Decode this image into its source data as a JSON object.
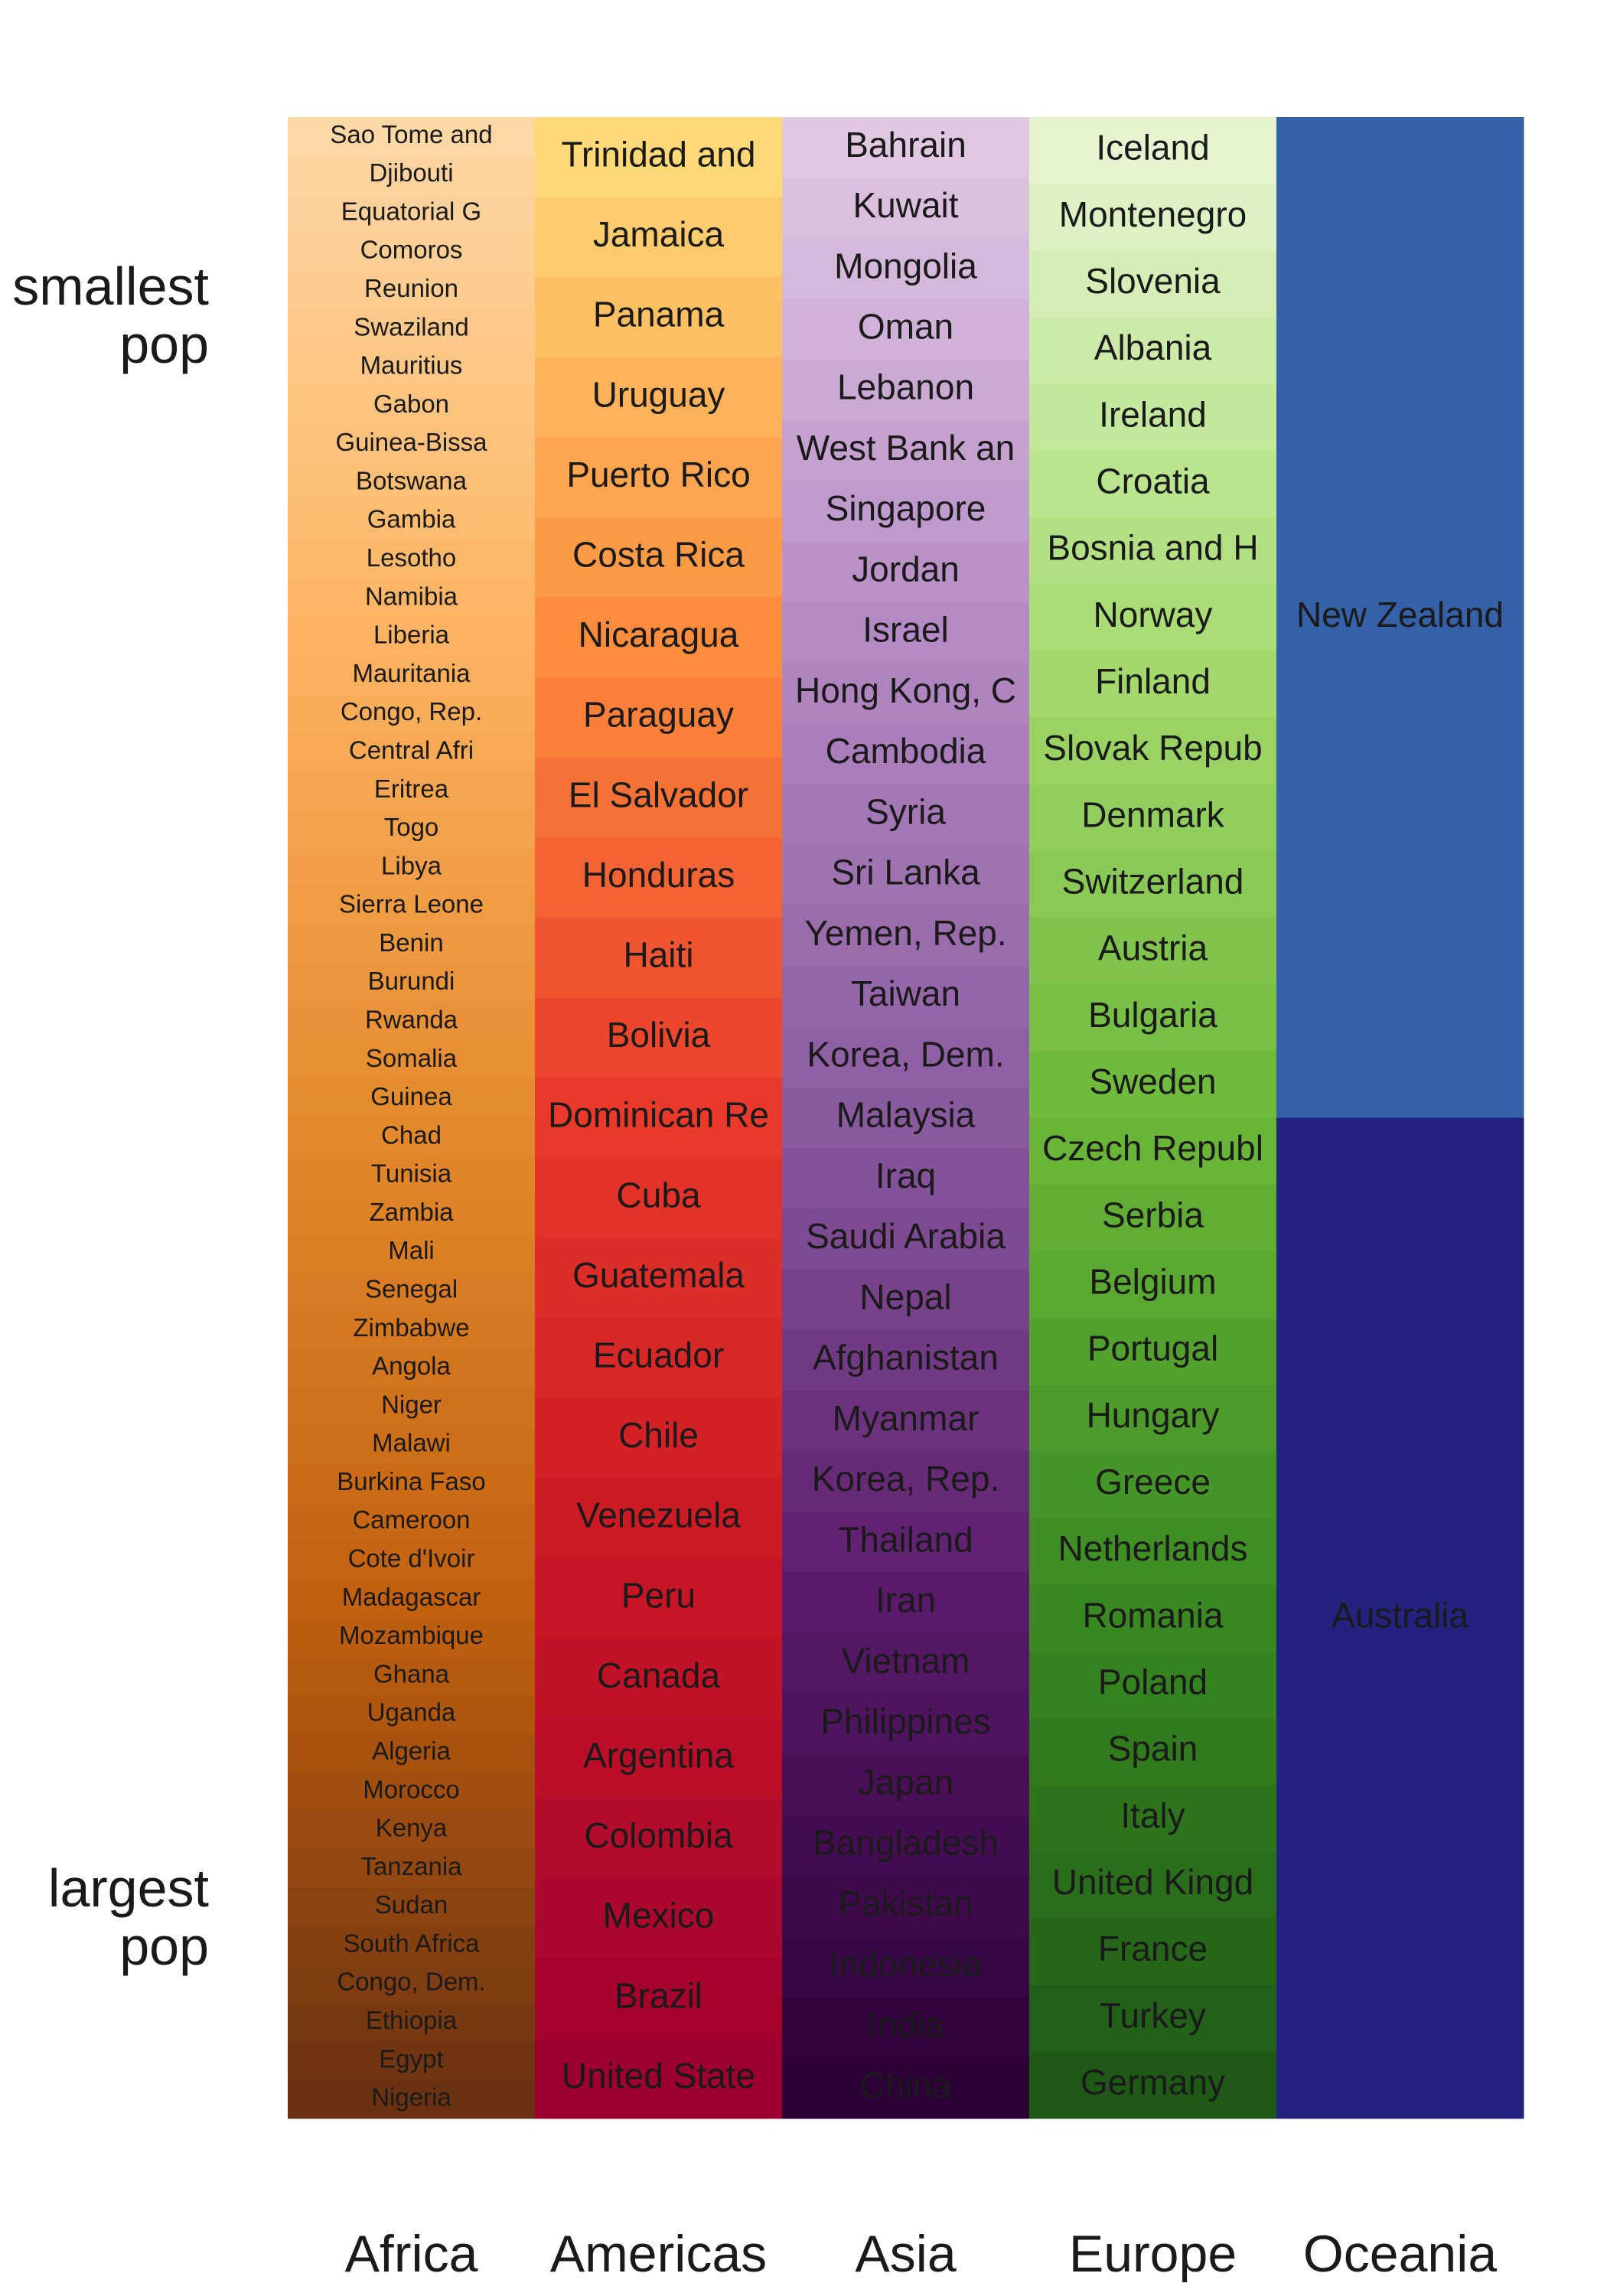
{
  "chart_data": {
    "type": "tile",
    "annotations": [
      [
        "smallest",
        "pop"
      ],
      [
        "largest",
        "pop"
      ]
    ],
    "columns": [
      {
        "name": "Africa",
        "colors": [
          "#fdd7a4",
          "#fdb462",
          "#e48a2c",
          "#c2600f",
          "#6a3211"
        ],
        "labels": [
          "Sao Tome and",
          "Djibouti",
          "Equatorial G",
          "Comoros",
          "Reunion",
          "Swaziland",
          "Mauritius",
          "Gabon",
          "Guinea-Bissa",
          "Botswana",
          "Gambia",
          "Lesotho",
          "Namibia",
          "Liberia",
          "Mauritania",
          "Congo, Rep.",
          "Central Afri",
          "Eritrea",
          "Togo",
          "Libya",
          "Sierra Leone",
          "Benin",
          "Burundi",
          "Rwanda",
          "Somalia",
          "Guinea",
          "Chad",
          "Tunisia",
          "Zambia",
          "Mali",
          "Senegal",
          "Zimbabwe",
          "Angola",
          "Niger",
          "Malawi",
          "Burkina Faso",
          "Cameroon",
          "Cote d'Ivoir",
          "Madagascar",
          "Mozambique",
          "Ghana",
          "Uganda",
          "Algeria",
          "Morocco",
          "Kenya",
          "Tanzania",
          "Sudan",
          "South Africa",
          "Congo, Dem.",
          "Ethiopia",
          "Egypt",
          "Nigeria"
        ]
      },
      {
        "name": "Americas",
        "colors": [
          "#fed976",
          "#fd8d3c",
          "#e8392a",
          "#c81525",
          "#9e0030"
        ],
        "labels": [
          "Trinidad and",
          "Jamaica",
          "Panama",
          "Uruguay",
          "Puerto Rico",
          "Costa Rica",
          "Nicaragua",
          "Paraguay",
          "El Salvador",
          "Honduras",
          "Haiti",
          "Bolivia",
          "Dominican Re",
          "Cuba",
          "Guatemala",
          "Ecuador",
          "Chile",
          "Venezuela",
          "Peru",
          "Canada",
          "Argentina",
          "Colombia",
          "Mexico",
          "Brazil",
          "United State"
        ]
      },
      {
        "name": "Asia",
        "colors": [
          "#e0c8e2",
          "#b48ac4",
          "#8a5a9e",
          "#5a1a6a",
          "#2d0038"
        ],
        "labels": [
          "Bahrain",
          "Kuwait",
          "Mongolia",
          "Oman",
          "Lebanon",
          "West Bank an",
          "Singapore",
          "Jordan",
          "Israel",
          "Hong Kong, C",
          "Cambodia",
          "Syria",
          "Sri Lanka",
          "Yemen, Rep.",
          "Taiwan",
          "Korea, Dem.",
          "Malaysia",
          "Iraq",
          "Saudi Arabia",
          "Nepal",
          "Afghanistan",
          "Myanmar",
          "Korea, Rep.",
          "Thailand",
          "Iran",
          "Vietnam",
          "Philippines",
          "Japan",
          "Bangladesh",
          "Pakistan",
          "Indonesia",
          "India",
          "China"
        ]
      },
      {
        "name": "Europe",
        "colors": [
          "#e5f5d0",
          "#a8dc72",
          "#6cb83a",
          "#3a8a22",
          "#1e5a16"
        ],
        "labels": [
          "Iceland",
          "Montenegro",
          "Slovenia",
          "Albania",
          "Ireland",
          "Croatia",
          "Bosnia and H",
          "Norway",
          "Finland",
          "Slovak Repub",
          "Denmark",
          "Switzerland",
          "Austria",
          "Bulgaria",
          "Sweden",
          "Czech Republ",
          "Serbia",
          "Belgium",
          "Portugal",
          "Hungary",
          "Greece",
          "Netherlands",
          "Romania",
          "Poland",
          "Spain",
          "Italy",
          "United Kingd",
          "France",
          "Turkey",
          "Germany"
        ]
      },
      {
        "name": "Oceania",
        "colors": [
          "#3461a8",
          "#23237f"
        ],
        "labels": [
          "New Zealand",
          "Australia"
        ]
      }
    ]
  }
}
